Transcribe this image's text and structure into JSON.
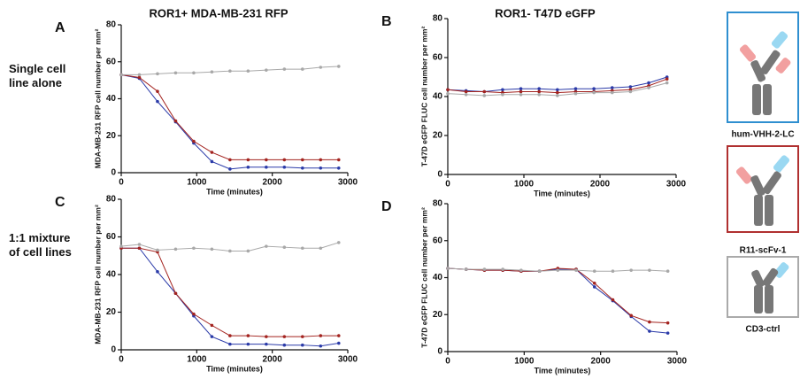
{
  "legend": [
    {
      "name": "hum-VHH-2-LC",
      "color": "#2a3aa8"
    },
    {
      "name": "R11-scFv-1",
      "color": "#a3231f"
    },
    {
      "name": "CD3-ctrl",
      "color": "#a8a8a8"
    }
  ],
  "row_labels": [
    "Single cell line alone",
    "1:1 mixture of cell lines"
  ],
  "chart_data": [
    {
      "type": "line",
      "panel": "A",
      "title": "ROR1+ MDA-MB-231 RFP",
      "ylabel": "MDA-MB-231 RFP cell number per mm²",
      "xlabel": "Time (minutes)",
      "x": [
        0,
        240,
        480,
        720,
        960,
        1200,
        1440,
        1680,
        1920,
        2160,
        2400,
        2640,
        2880
      ],
      "xlim": [
        0,
        3000
      ],
      "xticks": [
        0,
        1000,
        2000,
        3000
      ],
      "ylim": [
        0,
        80
      ],
      "yticks": [
        0,
        20,
        40,
        60,
        80
      ],
      "series": [
        {
          "values": [
            53,
            51,
            38.5,
            27.5,
            16,
            6,
            2,
            3,
            3,
            3,
            2.5,
            2.5,
            2.5
          ]
        },
        {
          "values": [
            53,
            51.5,
            44,
            28,
            17,
            11,
            7,
            7,
            7,
            7,
            7,
            7,
            7
          ]
        },
        {
          "values": [
            53,
            53,
            53.5,
            54,
            54,
            54.5,
            55,
            55,
            55.5,
            56,
            56,
            57,
            57.5
          ]
        }
      ]
    },
    {
      "type": "line",
      "panel": "B",
      "title": "ROR1-  T47D eGFP",
      "ylabel": "T-47D eGFP FLUC cell number per mm²",
      "xlabel": "Time (minutes)",
      "x": [
        0,
        240,
        480,
        720,
        960,
        1200,
        1440,
        1680,
        1920,
        2160,
        2400,
        2640,
        2880
      ],
      "xlim": [
        0,
        3000
      ],
      "xticks": [
        0,
        1000,
        2000,
        3000
      ],
      "ylim": [
        0,
        80
      ],
      "yticks": [
        0,
        20,
        40,
        60,
        80
      ],
      "series": [
        {
          "values": [
            43.5,
            43,
            42.5,
            43.5,
            44,
            44,
            43.5,
            44,
            44,
            44.5,
            45,
            47,
            50
          ]
        },
        {
          "values": [
            43.5,
            42.5,
            42.5,
            42,
            42.5,
            42.5,
            42,
            42.5,
            42.5,
            43,
            43.5,
            45.5,
            49
          ]
        },
        {
          "values": [
            41.5,
            41,
            40.5,
            41,
            41,
            41,
            40.5,
            41.5,
            42,
            42,
            42.5,
            44.5,
            47
          ]
        }
      ]
    },
    {
      "type": "line",
      "panel": "C",
      "ylabel": "MDA-MB-231 RFP cell number per mm²",
      "xlabel": "Time (minutes)",
      "x": [
        0,
        240,
        480,
        720,
        960,
        1200,
        1440,
        1680,
        1920,
        2160,
        2400,
        2640,
        2880
      ],
      "xlim": [
        0,
        3000
      ],
      "xticks": [
        0,
        1000,
        2000,
        3000
      ],
      "ylim": [
        0,
        80
      ],
      "yticks": [
        0,
        20,
        40,
        60,
        80
      ],
      "series": [
        {
          "values": [
            54,
            54,
            41.5,
            30,
            18,
            7,
            3,
            3,
            3,
            2.5,
            2.5,
            2,
            3.5
          ]
        },
        {
          "values": [
            54,
            54,
            52,
            30,
            19,
            13,
            7.5,
            7.5,
            7,
            7,
            7,
            7.5,
            7.5
          ]
        },
        {
          "values": [
            55,
            56,
            53,
            53.5,
            54,
            53.5,
            52.5,
            52.5,
            55,
            54.5,
            54,
            54,
            57
          ]
        }
      ]
    },
    {
      "type": "line",
      "panel": "D",
      "ylabel": "T-47D eGFP FLUC cell number per mm²",
      "xlabel": "Time (minutes)",
      "x": [
        0,
        240,
        480,
        720,
        960,
        1200,
        1440,
        1680,
        1920,
        2160,
        2400,
        2640,
        2880
      ],
      "xlim": [
        0,
        3000
      ],
      "xticks": [
        0,
        1000,
        2000,
        3000
      ],
      "ylim": [
        0,
        80
      ],
      "yticks": [
        0,
        20,
        40,
        60,
        80
      ],
      "series": [
        {
          "values": [
            45,
            44.5,
            44,
            44,
            43.5,
            43.5,
            44.5,
            44.5,
            35,
            27.5,
            19,
            11,
            10
          ]
        },
        {
          "values": [
            45,
            44.5,
            44,
            44,
            43.5,
            43.5,
            45,
            44.5,
            37,
            28,
            19.5,
            16,
            15.5
          ]
        },
        {
          "values": [
            45,
            44.5,
            44.5,
            44.5,
            44,
            43.5,
            44,
            44,
            43.5,
            43.5,
            44,
            44,
            43.5
          ]
        }
      ]
    }
  ]
}
